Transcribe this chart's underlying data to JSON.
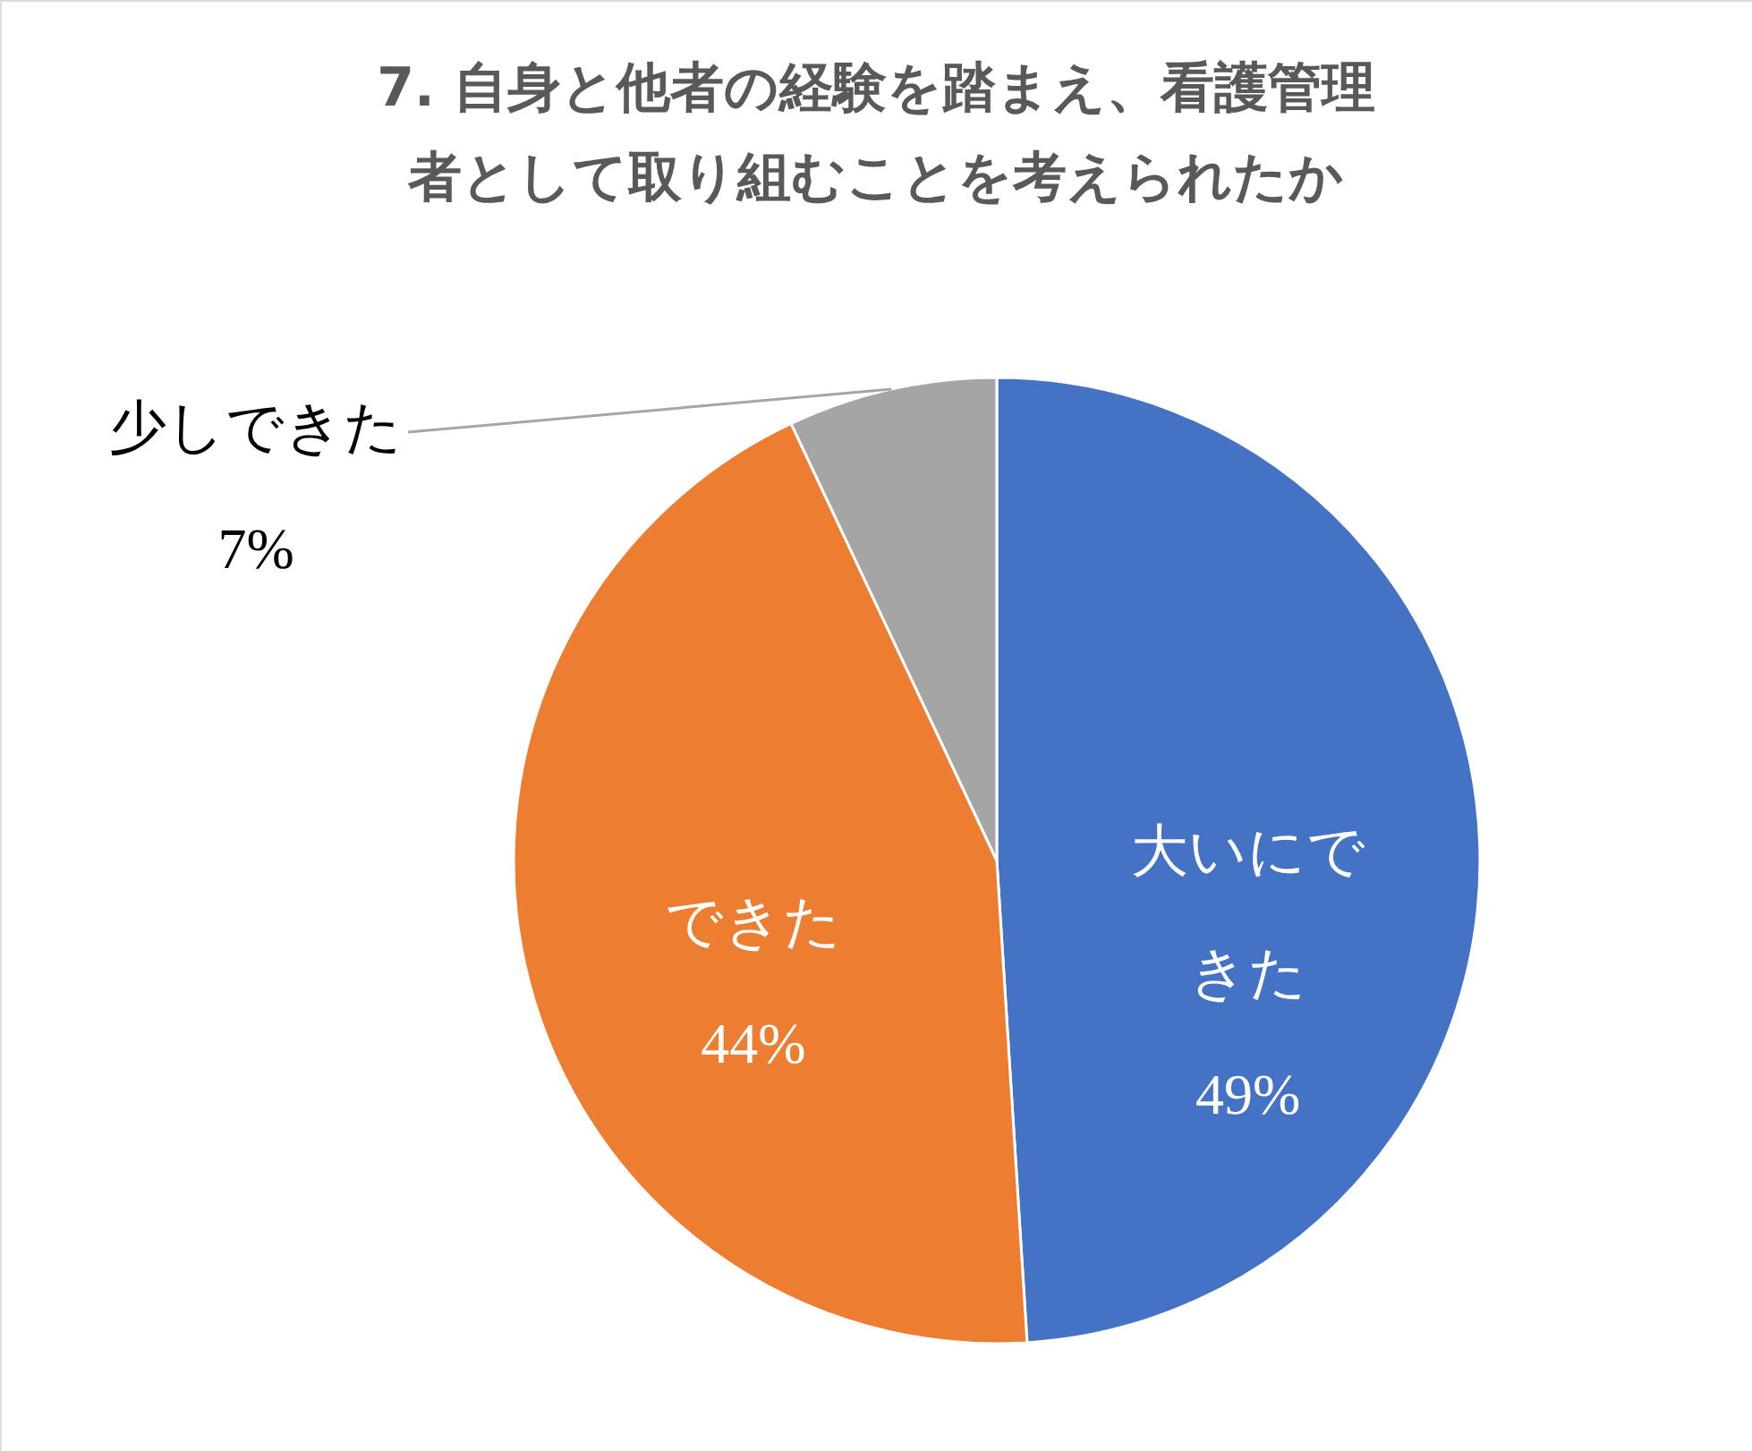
{
  "chart_data": {
    "type": "pie",
    "title": "7. 自身と他者の経験を踏まえ、看護管理者として取り組むことを考えられたか",
    "categories": [
      "大いにできた",
      "できた",
      "少しできた"
    ],
    "values": [
      49,
      44,
      7
    ],
    "colors": [
      "#4472c4",
      "#ed7d31",
      "#a5a5a5"
    ],
    "value_labels": [
      "49%",
      "44%",
      "7%"
    ]
  }
}
